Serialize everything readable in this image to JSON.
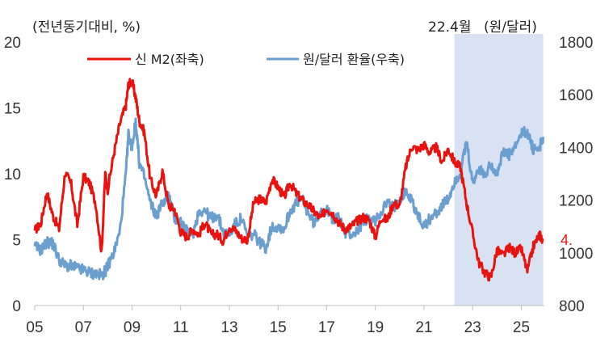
{
  "chart_data": {
    "type": "line",
    "left_unit_label": "(전년동기대비, %)",
    "right_unit_label": "(원/달러)",
    "shaded_label": "22.4월",
    "shaded_range": [
      2022.25,
      2025.9
    ],
    "x_range": [
      2005,
      2025.95
    ],
    "x_tick_labels": [
      "05",
      "07",
      "09",
      "11",
      "13",
      "15",
      "17",
      "19",
      "21",
      "23",
      "25"
    ],
    "x_tick_values": [
      2005,
      2007,
      2009,
      2011,
      2013,
      2015,
      2017,
      2019,
      2021,
      2023,
      2025
    ],
    "y_left": {
      "range": [
        0,
        20
      ],
      "ticks": [
        0,
        5,
        10,
        15,
        20
      ]
    },
    "y_right": {
      "range": [
        800,
        1800
      ],
      "ticks": [
        800,
        1000,
        1200,
        1400,
        1600,
        1800
      ]
    },
    "grid": false,
    "legend_position": "top",
    "end_label": "4.",
    "series": [
      {
        "name": "신 M2(좌축)",
        "axis": "left",
        "color": "#e8130f",
        "x": [
          2005.0,
          2005.25,
          2005.5,
          2005.75,
          2006.0,
          2006.25,
          2006.5,
          2006.75,
          2007.0,
          2007.25,
          2007.5,
          2007.75,
          2007.9,
          2008.0,
          2008.25,
          2008.5,
          2008.75,
          2008.85,
          2009.0,
          2009.15,
          2009.3,
          2009.5,
          2009.75,
          2010.0,
          2010.25,
          2010.5,
          2010.75,
          2011.0,
          2011.25,
          2011.5,
          2011.75,
          2012.0,
          2012.25,
          2012.5,
          2012.75,
          2013.0,
          2013.25,
          2013.5,
          2013.75,
          2014.0,
          2014.25,
          2014.5,
          2014.75,
          2015.0,
          2015.25,
          2015.5,
          2015.75,
          2016.0,
          2016.25,
          2016.5,
          2016.75,
          2017.0,
          2017.25,
          2017.5,
          2017.75,
          2018.0,
          2018.25,
          2018.5,
          2018.75,
          2019.0,
          2019.25,
          2019.5,
          2019.75,
          2020.0,
          2020.25,
          2020.5,
          2020.75,
          2021.0,
          2021.25,
          2021.5,
          2021.75,
          2022.0,
          2022.25,
          2022.5,
          2022.75,
          2023.0,
          2023.25,
          2023.5,
          2023.75,
          2024.0,
          2024.25,
          2024.5,
          2024.75,
          2025.0,
          2025.25,
          2025.5,
          2025.75,
          2025.9
        ],
        "values": [
          5.7,
          6.2,
          8.6,
          6.8,
          5.8,
          10.1,
          9.2,
          6.1,
          9.8,
          9.3,
          7.8,
          4.0,
          10.0,
          8.8,
          11.5,
          13.8,
          15.2,
          16.8,
          17.0,
          15.8,
          14.0,
          13.2,
          9.6,
          8.3,
          10.2,
          7.6,
          7.3,
          5.6,
          5.2,
          5.8,
          5.4,
          6.3,
          5.4,
          5.4,
          4.9,
          6.0,
          5.7,
          5.1,
          5.0,
          7.8,
          8.1,
          7.8,
          9.6,
          9.0,
          8.2,
          9.3,
          8.5,
          8.0,
          7.6,
          7.1,
          6.6,
          7.4,
          7.0,
          6.3,
          5.8,
          6.0,
          6.4,
          6.7,
          6.5,
          5.2,
          6.7,
          6.5,
          7.8,
          7.5,
          10.5,
          12.1,
          11.8,
          12.2,
          11.6,
          12.0,
          10.9,
          11.9,
          10.9,
          10.5,
          7.8,
          5.5,
          3.3,
          2.5,
          2.1,
          4.2,
          3.8,
          4.4,
          4.0,
          4.3,
          2.6,
          4.5,
          5.4,
          4.9
        ]
      },
      {
        "name": "원/달러 환율(우축)",
        "axis": "right",
        "color": "#6a9fd0",
        "x": [
          2005.0,
          2005.25,
          2005.5,
          2005.75,
          2006.0,
          2006.25,
          2006.5,
          2006.75,
          2007.0,
          2007.25,
          2007.5,
          2007.75,
          2007.9,
          2008.0,
          2008.25,
          2008.5,
          2008.75,
          2008.85,
          2009.0,
          2009.15,
          2009.3,
          2009.5,
          2009.75,
          2010.0,
          2010.25,
          2010.5,
          2010.75,
          2011.0,
          2011.25,
          2011.5,
          2011.75,
          2012.0,
          2012.25,
          2012.5,
          2012.75,
          2013.0,
          2013.25,
          2013.5,
          2013.75,
          2014.0,
          2014.25,
          2014.5,
          2014.75,
          2015.0,
          2015.25,
          2015.5,
          2015.75,
          2016.0,
          2016.25,
          2016.5,
          2016.75,
          2017.0,
          2017.25,
          2017.5,
          2017.75,
          2018.0,
          2018.25,
          2018.5,
          2018.75,
          2019.0,
          2019.25,
          2019.5,
          2019.75,
          2020.0,
          2020.25,
          2020.5,
          2020.75,
          2021.0,
          2021.25,
          2021.5,
          2021.75,
          2022.0,
          2022.25,
          2022.5,
          2022.75,
          2023.0,
          2023.25,
          2023.5,
          2023.75,
          2024.0,
          2024.25,
          2024.5,
          2024.75,
          2025.0,
          2025.25,
          2025.5,
          2025.75,
          2025.9
        ],
        "values": [
          1025,
          1010,
          1040,
          1035,
          975,
          950,
          950,
          940,
          935,
          925,
          920,
          915,
          930,
          950,
          1000,
          1080,
          1300,
          1450,
          1400,
          1500,
          1340,
          1290,
          1190,
          1140,
          1190,
          1220,
          1130,
          1120,
          1080,
          1070,
          1160,
          1160,
          1130,
          1145,
          1080,
          1070,
          1110,
          1130,
          1060,
          1070,
          1040,
          1020,
          1100,
          1100,
          1090,
          1160,
          1190,
          1200,
          1150,
          1110,
          1160,
          1160,
          1130,
          1130,
          1080,
          1070,
          1080,
          1120,
          1130,
          1120,
          1160,
          1190,
          1170,
          1210,
          1230,
          1200,
          1140,
          1100,
          1130,
          1150,
          1180,
          1200,
          1270,
          1300,
          1420,
          1260,
          1320,
          1290,
          1340,
          1300,
          1380,
          1370,
          1400,
          1450,
          1460,
          1390,
          1400,
          1440
        ]
      }
    ]
  }
}
